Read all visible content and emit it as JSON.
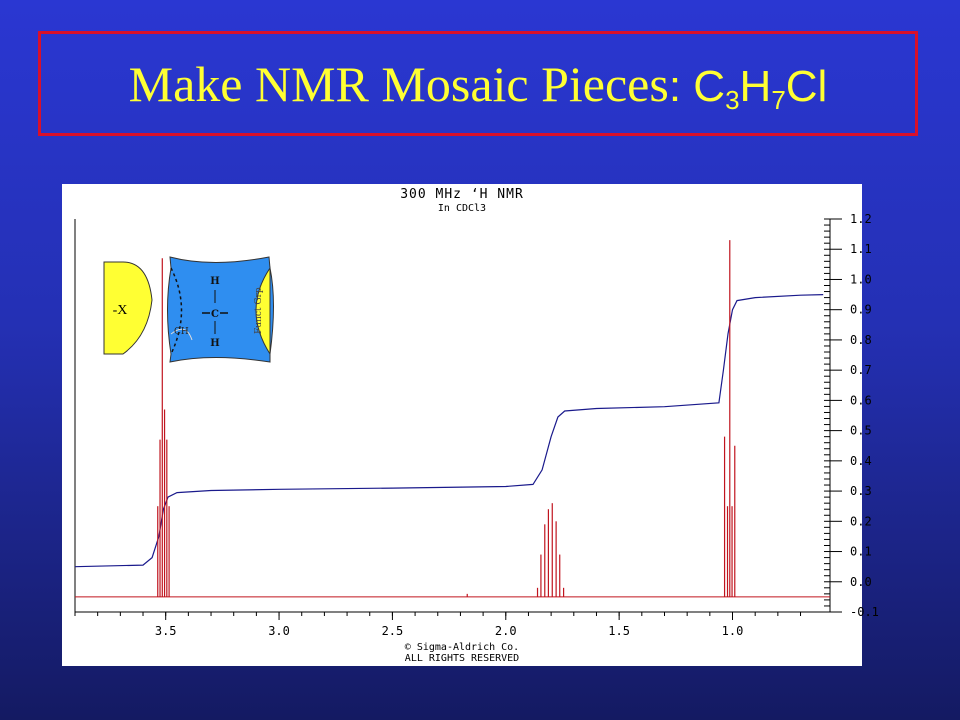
{
  "slide": {
    "title_text": "Make NMR Mosaic Pieces",
    "formula_separator": ": ",
    "formula": {
      "c": "C",
      "c_n": "3",
      "h": "H",
      "h_n": "7",
      "cl": "Cl"
    }
  },
  "spectrum": {
    "header_line1": "300 MHz ‘H NMR",
    "header_line2": "In CDCl3",
    "copyright_line1": "© Sigma-Aldrich Co.",
    "copyright_line2": "ALL RIGHTS RESERVED"
  },
  "mosaic": {
    "x_piece_label": "-X",
    "center_top_h": "H",
    "center_c": "C",
    "center_bottom_h": "H",
    "left_group_label": "CH",
    "right_group_label": "Funct Grp.",
    "colors": {
      "yellow": "#ffff33",
      "blue": "#2f8ef0"
    }
  },
  "chart_data": {
    "type": "line",
    "x_ticks": [
      "3.5",
      "3.0",
      "2.5",
      "2.0",
      "1.5",
      "1.0"
    ],
    "y_ticks": [
      "1.2",
      "1.1",
      "1.0",
      "0.9",
      "0.8",
      "0.7",
      "0.6",
      "0.5",
      "0.4",
      "0.3",
      "0.2",
      "0.1",
      "0.0",
      "-0.1"
    ],
    "xlim": [
      3.9,
      0.57
    ],
    "ylim": [
      -0.1,
      1.2
    ],
    "x_reversed": true,
    "series": [
      {
        "kind": "integral",
        "color": "#1a1a8c",
        "points": [
          [
            3.9,
            0.05
          ],
          [
            3.6,
            0.055
          ],
          [
            3.56,
            0.08
          ],
          [
            3.53,
            0.15
          ],
          [
            3.51,
            0.24
          ],
          [
            3.49,
            0.28
          ],
          [
            3.45,
            0.295
          ],
          [
            3.3,
            0.302
          ],
          [
            3.0,
            0.306
          ],
          [
            2.5,
            0.31
          ],
          [
            2.0,
            0.315
          ],
          [
            1.88,
            0.322
          ],
          [
            1.84,
            0.37
          ],
          [
            1.8,
            0.48
          ],
          [
            1.77,
            0.545
          ],
          [
            1.74,
            0.565
          ],
          [
            1.6,
            0.573
          ],
          [
            1.3,
            0.579
          ],
          [
            1.06,
            0.592
          ],
          [
            1.04,
            0.7
          ],
          [
            1.02,
            0.82
          ],
          [
            1.0,
            0.9
          ],
          [
            0.98,
            0.93
          ],
          [
            0.9,
            0.94
          ],
          [
            0.7,
            0.948
          ],
          [
            0.6,
            0.95
          ]
        ]
      },
      {
        "kind": "spectrum",
        "color": "#c0141e",
        "baseline": -0.05,
        "peaks": [
          {
            "x": 3.535,
            "h": 0.3
          },
          {
            "x": 3.525,
            "h": 0.52
          },
          {
            "x": 3.515,
            "h": 1.12
          },
          {
            "x": 3.505,
            "h": 0.62
          },
          {
            "x": 3.495,
            "h": 0.52
          },
          {
            "x": 3.485,
            "h": 0.3
          },
          {
            "x": 1.86,
            "h": 0.03
          },
          {
            "x": 1.845,
            "h": 0.14
          },
          {
            "x": 1.828,
            "h": 0.24
          },
          {
            "x": 1.812,
            "h": 0.29
          },
          {
            "x": 1.795,
            "h": 0.31
          },
          {
            "x": 1.778,
            "h": 0.25
          },
          {
            "x": 1.762,
            "h": 0.14
          },
          {
            "x": 1.745,
            "h": 0.03
          },
          {
            "x": 2.17,
            "h": 0.01
          },
          {
            "x": 1.035,
            "h": 0.53
          },
          {
            "x": 1.022,
            "h": 0.3
          },
          {
            "x": 1.012,
            "h": 1.18
          },
          {
            "x": 1.002,
            "h": 0.3
          },
          {
            "x": 0.99,
            "h": 0.5
          }
        ]
      }
    ]
  }
}
